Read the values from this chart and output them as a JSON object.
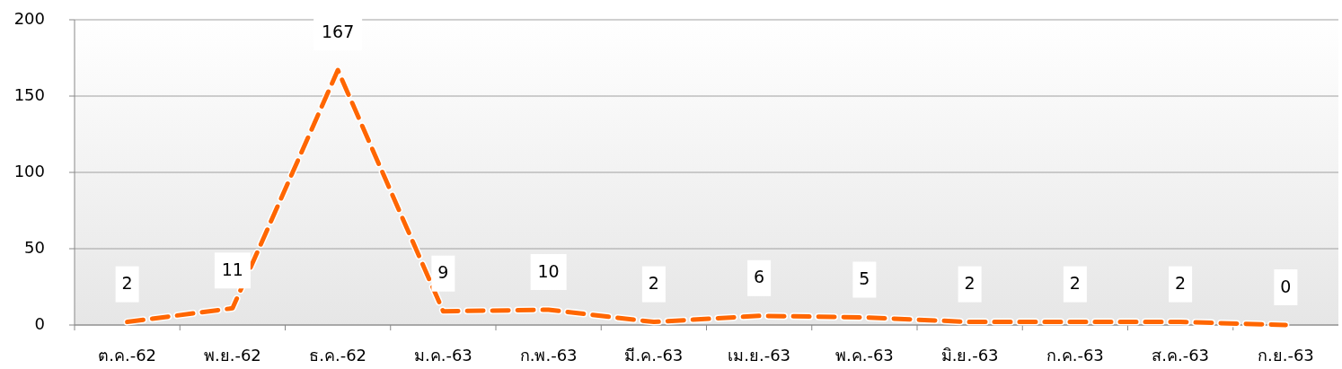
{
  "chart_data": {
    "type": "line",
    "categories": [
      "ต.ค.-62",
      "พ.ย.-62",
      "ธ.ค.-62",
      "ม.ค.-63",
      "ก.พ.-63",
      "มี.ค.-63",
      "เม.ย.-63",
      "พ.ค.-63",
      "มิ.ย.-63",
      "ก.ค.-63",
      "ส.ค.-63",
      "ก.ย.-63"
    ],
    "values": [
      2,
      11,
      167,
      9,
      10,
      2,
      6,
      5,
      2,
      2,
      2,
      0
    ],
    "color": "#ff6600",
    "ylim": [
      0,
      200
    ],
    "yticks": [
      0,
      50,
      100,
      150,
      200
    ],
    "grid": "y",
    "data_labels": true,
    "line_style": "dashed",
    "marker": "none"
  }
}
